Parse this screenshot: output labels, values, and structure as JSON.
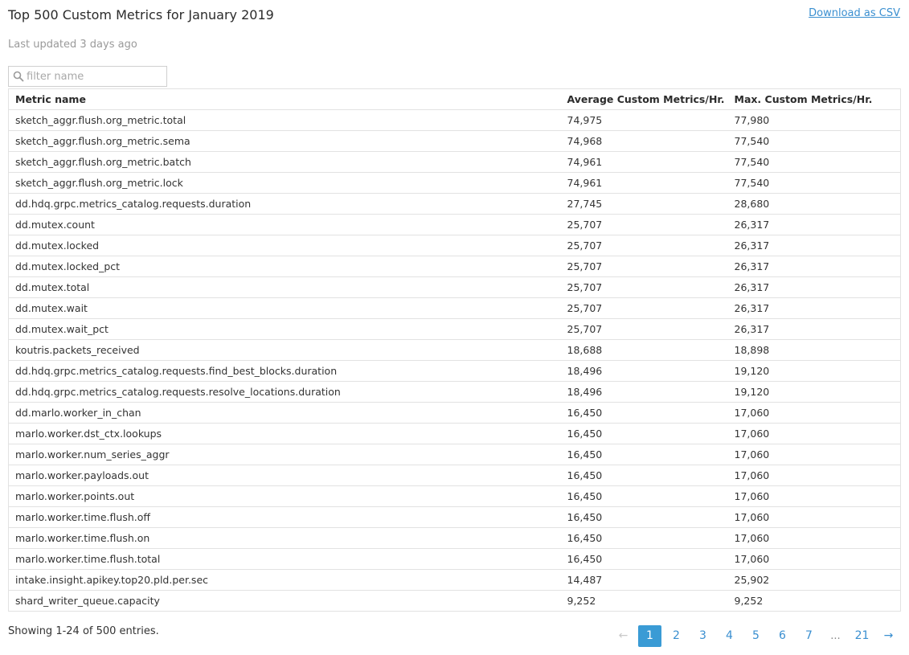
{
  "header": {
    "title": "Top 500 Custom Metrics for January 2019",
    "download_label": "Download as CSV",
    "subtitle": "Last updated 3 days ago"
  },
  "filter": {
    "placeholder": "filter name",
    "value": ""
  },
  "table": {
    "columns": [
      "Metric name",
      "Average Custom Metrics/Hr.",
      "Max. Custom Metrics/Hr."
    ],
    "sort_indicator": "↓",
    "rows": [
      [
        "sketch_aggr.flush.org_metric.total",
        "74,975",
        "77,980"
      ],
      [
        "sketch_aggr.flush.org_metric.sema",
        "74,968",
        "77,540"
      ],
      [
        "sketch_aggr.flush.org_metric.batch",
        "74,961",
        "77,540"
      ],
      [
        "sketch_aggr.flush.org_metric.lock",
        "74,961",
        "77,540"
      ],
      [
        "dd.hdq.grpc.metrics_catalog.requests.duration",
        "27,745",
        "28,680"
      ],
      [
        "dd.mutex.count",
        "25,707",
        "26,317"
      ],
      [
        "dd.mutex.locked",
        "25,707",
        "26,317"
      ],
      [
        "dd.mutex.locked_pct",
        "25,707",
        "26,317"
      ],
      [
        "dd.mutex.total",
        "25,707",
        "26,317"
      ],
      [
        "dd.mutex.wait",
        "25,707",
        "26,317"
      ],
      [
        "dd.mutex.wait_pct",
        "25,707",
        "26,317"
      ],
      [
        "koutris.packets_received",
        "18,688",
        "18,898"
      ],
      [
        "dd.hdq.grpc.metrics_catalog.requests.find_best_blocks.duration",
        "18,496",
        "19,120"
      ],
      [
        "dd.hdq.grpc.metrics_catalog.requests.resolve_locations.duration",
        "18,496",
        "19,120"
      ],
      [
        "dd.marlo.worker_in_chan",
        "16,450",
        "17,060"
      ],
      [
        "marlo.worker.dst_ctx.lookups",
        "16,450",
        "17,060"
      ],
      [
        "marlo.worker.num_series_aggr",
        "16,450",
        "17,060"
      ],
      [
        "marlo.worker.payloads.out",
        "16,450",
        "17,060"
      ],
      [
        "marlo.worker.points.out",
        "16,450",
        "17,060"
      ],
      [
        "marlo.worker.time.flush.off",
        "16,450",
        "17,060"
      ],
      [
        "marlo.worker.time.flush.on",
        "16,450",
        "17,060"
      ],
      [
        "marlo.worker.time.flush.total",
        "16,450",
        "17,060"
      ],
      [
        "intake.insight.apikey.top20.pld.per.sec",
        "14,487",
        "25,902"
      ],
      [
        "shard_writer_queue.capacity",
        "9,252",
        "9,252"
      ]
    ]
  },
  "footer": {
    "entries_info": "Showing 1-24 of 500 entries.",
    "pagination": {
      "prev": "←",
      "next": "→",
      "pages": [
        "1",
        "2",
        "3",
        "4",
        "5",
        "6",
        "7"
      ],
      "ellipsis": "...",
      "last": "21",
      "active": "1"
    }
  },
  "colors": {
    "accent": "#3a9bd5",
    "link": "#3a8fd0"
  },
  "icons": {
    "filter": "search-icon"
  }
}
